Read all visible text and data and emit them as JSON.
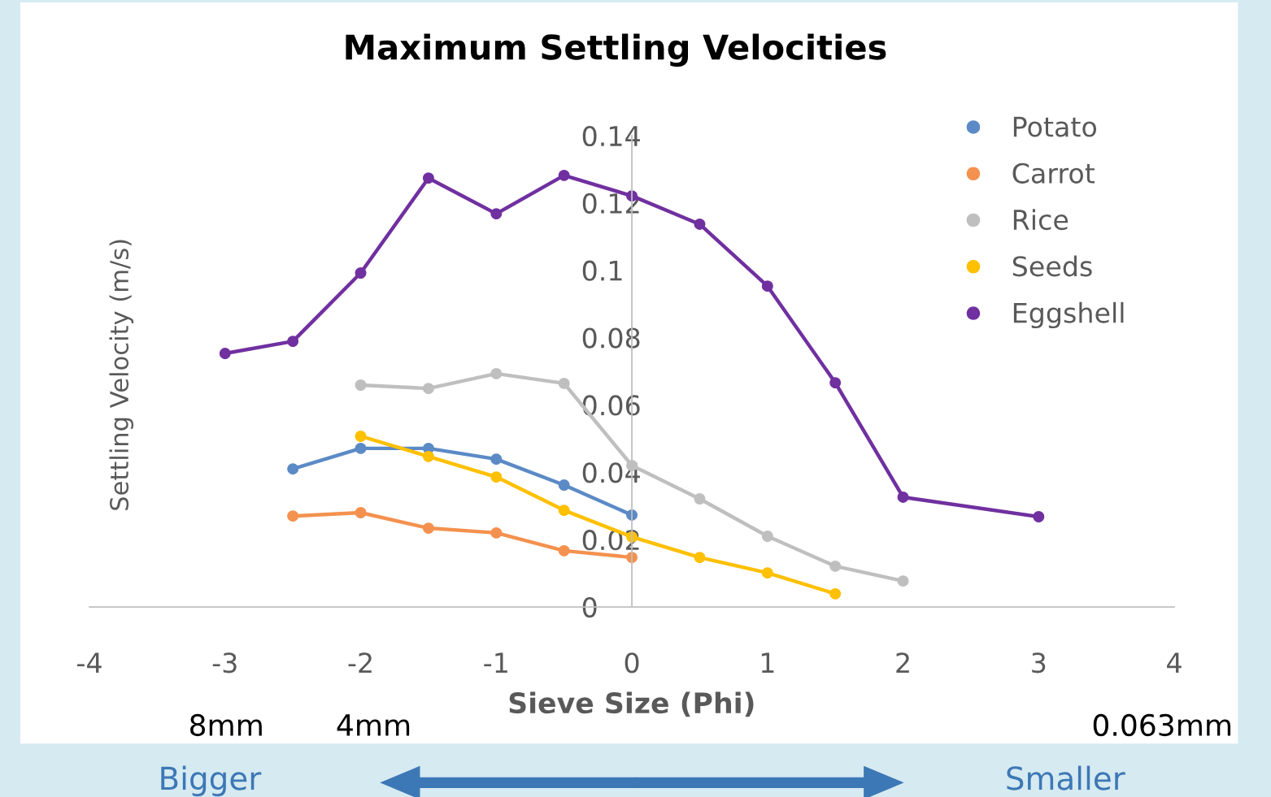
{
  "chart_data": {
    "type": "line",
    "title": "Maximum Settling Velocities",
    "xlabel": "Sieve Size (Phi)",
    "ylabel": "Settling Velocity (m/s)",
    "xlim": [
      -4,
      4
    ],
    "xticks": [
      -4,
      -3,
      -2,
      -1,
      0,
      1,
      2,
      3,
      4
    ],
    "ylim": [
      0,
      0.14
    ],
    "yticks": [
      0,
      0.02,
      0.04,
      0.06,
      0.08,
      0.1,
      0.12,
      0.14
    ],
    "grid": false,
    "legend": "top right",
    "marker": "circle",
    "line_style": "solid",
    "series": [
      {
        "name": "Potato",
        "color": "#5b8ac6",
        "x": [
          -2.5,
          -2,
          -1.5,
          -1,
          -0.5,
          0
        ],
        "values": [
          0.041,
          0.0471,
          0.0471,
          0.0439,
          0.0362,
          0.0273
        ]
      },
      {
        "name": "Carrot",
        "color": "#f4914e",
        "x": [
          -2.5,
          -2,
          -1.5,
          -1,
          -0.5,
          0
        ],
        "values": [
          0.027,
          0.028,
          0.0234,
          0.022,
          0.0167,
          0.0147
        ]
      },
      {
        "name": "Rice",
        "color": "#bfbfbf",
        "x": [
          -2,
          -1.5,
          -1,
          -0.5,
          0,
          0.5,
          1,
          1.5,
          2
        ],
        "values": [
          0.0659,
          0.0649,
          0.0693,
          0.0664,
          0.042,
          0.0321,
          0.021,
          0.0121,
          0.0077
        ]
      },
      {
        "name": "Seeds",
        "color": "#ffc000",
        "x": [
          -2,
          -1.5,
          -1,
          -0.5,
          0,
          0.5,
          1,
          1.5
        ],
        "values": [
          0.0507,
          0.0447,
          0.0386,
          0.0287,
          0.0208,
          0.0147,
          0.0101,
          0.0039
        ]
      },
      {
        "name": "Eggshell",
        "color": "#7030a0",
        "x": [
          -3,
          -2.5,
          -2,
          -1.5,
          -1,
          -0.5,
          0,
          0.5,
          1,
          1.5,
          2,
          3
        ],
        "values": [
          0.0753,
          0.0789,
          0.0992,
          0.1274,
          0.1168,
          0.1282,
          0.1221,
          0.1137,
          0.0953,
          0.0666,
          0.0326,
          0.0268
        ]
      }
    ],
    "annotations": [
      "8mm",
      "4mm",
      "0.063mm",
      "Bigger",
      "Smaller"
    ]
  }
}
